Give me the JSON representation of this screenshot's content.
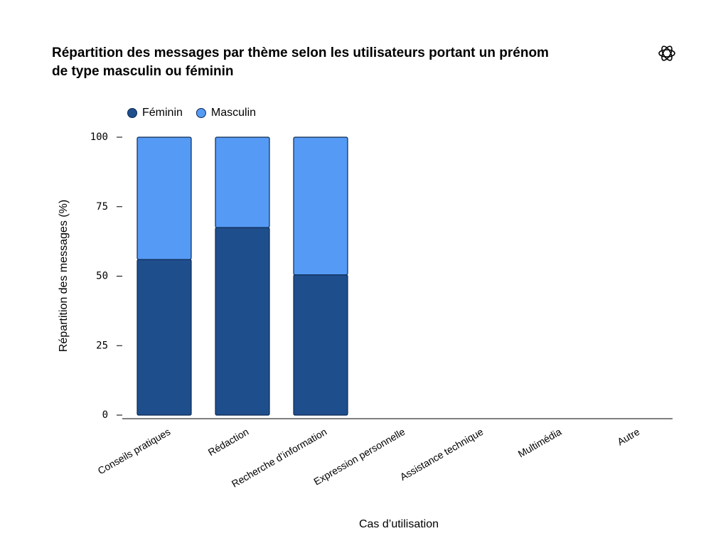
{
  "chart_data": {
    "type": "stacked_bar",
    "title": "Répartition des messages par thème selon les utilisateurs portant un prénom de type masculin ou féminin",
    "xlabel": "Cas d’utilisation",
    "ylabel": "Répartition des messages (%)",
    "categories": [
      "Conseils pratiques",
      "Rédaction",
      "Recherche d’information",
      "Expression personnelle",
      "Assistance technique",
      "Multimédia",
      "Autre"
    ],
    "series": [
      {
        "name": "Féminin",
        "color": "#1f4e8c",
        "values": [
          56,
          67.5,
          50.5,
          null,
          null,
          null,
          null
        ]
      },
      {
        "name": "Masculin",
        "color": "#559af5",
        "values": [
          44,
          32.5,
          49.5,
          null,
          null,
          null,
          null
        ]
      }
    ],
    "ylim": [
      0,
      100
    ],
    "yticks": [
      0,
      25,
      50,
      75,
      100
    ],
    "grid": false,
    "legend": "top-left"
  }
}
